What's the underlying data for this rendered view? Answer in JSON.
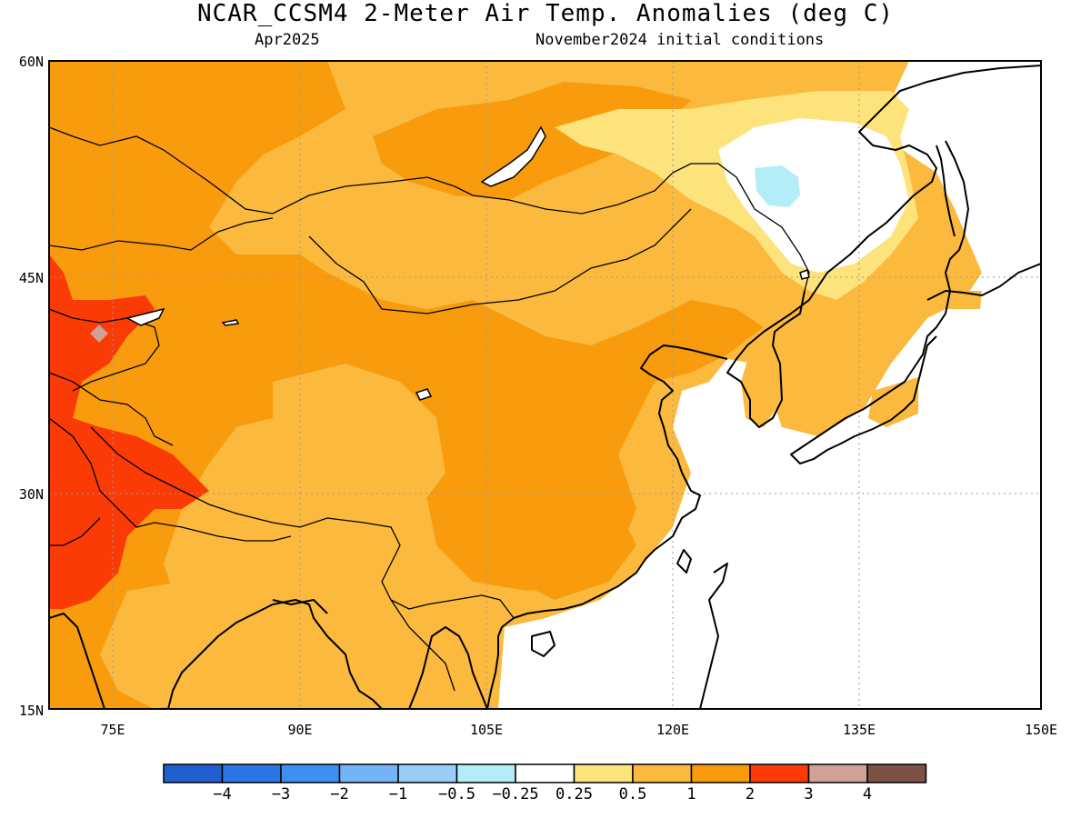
{
  "title": "NCAR_CCSM4 2-Meter Air Temp. Anomalies (deg C)",
  "valid_month": "Apr2025",
  "init_conditions": "November2024 initial conditions",
  "lat_ticks": [
    "60N",
    "45N",
    "30N",
    "15N"
  ],
  "lon_ticks": [
    "75E",
    "90E",
    "105E",
    "120E",
    "135E",
    "150E"
  ],
  "colorbar": {
    "labels": [
      "-4",
      "-3",
      "-2",
      "-1",
      "-0.5",
      "-0.25",
      "0.25",
      "0.5",
      "1",
      "2",
      "3",
      "4"
    ],
    "colors": [
      "#1f5fd0",
      "#2b76e6",
      "#3d8ff0",
      "#72b4f5",
      "#98cdf7",
      "#b3eef8",
      "#ffffff",
      "#fde37c",
      "#fbba3e",
      "#f89c0e",
      "#fb3b06",
      "#cfa197",
      "#7d5244"
    ]
  },
  "colors": {
    "ocean": "#ffffff",
    "coast": "#000000",
    "grid": "#9a9a9a"
  }
}
